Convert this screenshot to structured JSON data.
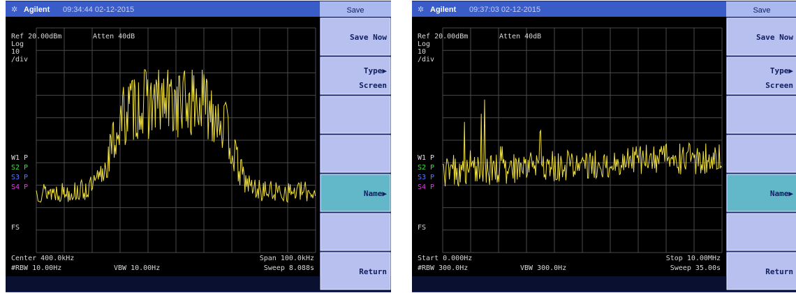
{
  "panels": [
    {
      "header": {
        "brand": "Agilent",
        "timestamp": "09:34:44 02-12-2015",
        "menu_title": "Save"
      },
      "screen": {
        "ref": "Ref 20.00dBm",
        "atten": "Atten 40dB",
        "scale": [
          "Log",
          "10",
          "/div"
        ],
        "markers": [
          "W1 P",
          "S2 P",
          "S3 P",
          "S4 P"
        ],
        "fs": "FS",
        "x_start": "Center 400.0kHz",
        "x_end": "Span 100.0kHz",
        "rbw": "#RBW 10.00Hz",
        "vbw": "VBW 10.00Hz",
        "sweep": "Sweep 8.088s"
      },
      "softkeys": [
        {
          "label": "Save Now"
        },
        {
          "label": "Type▶",
          "value": "Screen"
        },
        null,
        null,
        {
          "label": "Name▶",
          "active": true
        },
        null,
        {
          "label": "Return"
        }
      ]
    },
    {
      "header": {
        "brand": "Agilent",
        "timestamp": "09:37:03 02-12-2015",
        "menu_title": "Save"
      },
      "screen": {
        "ref": "Ref 20.00dBm",
        "atten": "Atten 40dB",
        "scale": [
          "Log",
          "10",
          "/div"
        ],
        "markers": [
          "W1 P",
          "S2 P",
          "S3 P",
          "S4 P"
        ],
        "fs": "FS",
        "x_start": "Start 0.000Hz",
        "x_end": "Stop 10.00MHz",
        "rbw": "#RBW 300.0Hz",
        "vbw": "VBW 300.0Hz",
        "sweep": "Sweep 35.00s"
      },
      "softkeys": [
        {
          "label": "Save Now"
        },
        {
          "label": "Type▶",
          "value": "Screen"
        },
        null,
        null,
        {
          "label": "Name▶",
          "active": true
        },
        null,
        {
          "label": "Return"
        }
      ]
    }
  ]
}
